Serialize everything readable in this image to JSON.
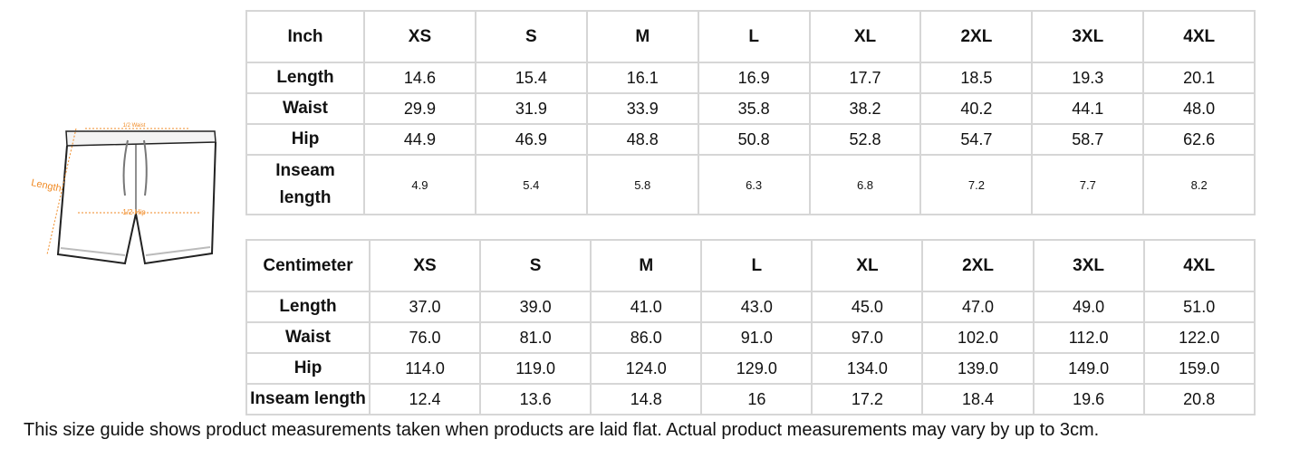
{
  "diagram": {
    "waist_label": "1/2 Waist",
    "hip_label": "1/2 Hip",
    "length_label": "Length",
    "accent_color": "#f08a24"
  },
  "sizes": [
    "XS",
    "S",
    "M",
    "L",
    "XL",
    "2XL",
    "3XL",
    "4XL"
  ],
  "inch_table": {
    "unit": "Inch",
    "rows": [
      {
        "label": "Length",
        "values": [
          "14.6",
          "15.4",
          "16.1",
          "16.9",
          "17.7",
          "18.5",
          "19.3",
          "20.1"
        ]
      },
      {
        "label": "Waist",
        "values": [
          "29.9",
          "31.9",
          "33.9",
          "35.8",
          "38.2",
          "40.2",
          "44.1",
          "48.0"
        ]
      },
      {
        "label": "Hip",
        "values": [
          "44.9",
          "46.9",
          "48.8",
          "50.8",
          "52.8",
          "54.7",
          "58.7",
          "62.6"
        ]
      },
      {
        "label_line1": "Inseam",
        "label_line2": "length",
        "values": [
          "4.9",
          "5.4",
          "5.8",
          "6.3",
          "6.8",
          "7.2",
          "7.7",
          "8.2"
        ]
      }
    ]
  },
  "cm_table": {
    "unit": "Centimeter",
    "rows": [
      {
        "label": "Length",
        "values": [
          "37.0",
          "39.0",
          "41.0",
          "43.0",
          "45.0",
          "47.0",
          "49.0",
          "51.0"
        ]
      },
      {
        "label": "Waist",
        "values": [
          "76.0",
          "81.0",
          "86.0",
          "91.0",
          "97.0",
          "102.0",
          "112.0",
          "122.0"
        ]
      },
      {
        "label": "Hip",
        "values": [
          "114.0",
          "119.0",
          "124.0",
          "129.0",
          "134.0",
          "139.0",
          "149.0",
          "159.0"
        ]
      },
      {
        "label": "Inseam length",
        "values": [
          "12.4",
          "13.6",
          "14.8",
          "16",
          "17.2",
          "18.4",
          "19.6",
          "20.8"
        ]
      }
    ]
  },
  "footnote": "This size guide shows product measurements taken when products are laid flat. Actual product measurements may vary by up to 3cm."
}
